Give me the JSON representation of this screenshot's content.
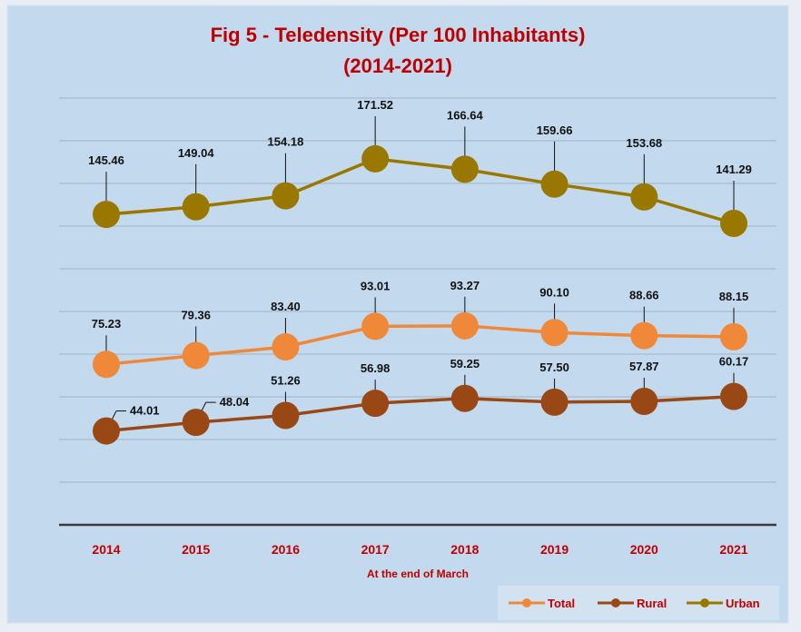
{
  "chart_data": {
    "type": "line",
    "title": "Fig 5 - Teledensity  (Per 100 Inhabitants)",
    "subtitle": "(2014-2021)",
    "x_label": "At the end of March",
    "categories": [
      "2014",
      "2015",
      "2016",
      "2017",
      "2018",
      "2019",
      "2020",
      "2021"
    ],
    "series": [
      {
        "name": "Total",
        "color": "#f0883a",
        "values": [
          75.23,
          79.36,
          83.4,
          93.01,
          93.27,
          90.1,
          88.66,
          88.15
        ],
        "value_labels": [
          "75.23",
          "79.36",
          "83.40",
          "93.01",
          "93.27",
          "90.10",
          "88.66",
          "88.15"
        ]
      },
      {
        "name": "Rural",
        "color": "#9a4716",
        "values": [
          44.01,
          48.04,
          51.26,
          56.98,
          59.25,
          57.5,
          57.87,
          60.17
        ],
        "value_labels": [
          "44.01",
          "48.04",
          "51.26",
          "56.98",
          "59.25",
          "57.50",
          "57.87",
          "60.17"
        ]
      },
      {
        "name": "Urban",
        "color": "#9a7800",
        "values": [
          145.46,
          149.04,
          154.18,
          171.52,
          166.64,
          159.66,
          153.68,
          141.29
        ],
        "value_labels": [
          "145.46",
          "149.04",
          "154.18",
          "171.52",
          "166.64",
          "159.66",
          "153.68",
          "141.29"
        ]
      }
    ],
    "ylim": [
      0,
      200
    ],
    "yticks": [
      0,
      20,
      40,
      60,
      80,
      100,
      120,
      140,
      160,
      180,
      200
    ],
    "grid": true,
    "legend": "bottom-right"
  }
}
